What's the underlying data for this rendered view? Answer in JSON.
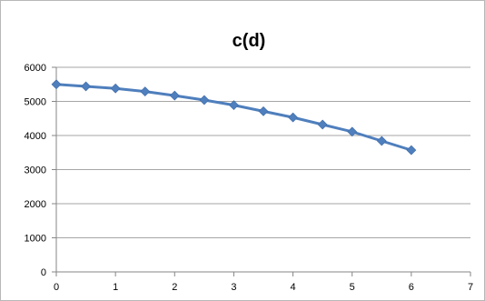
{
  "chart_data": {
    "type": "line",
    "title": "c(d)",
    "xlabel": "",
    "ylabel": "",
    "xlim": [
      0,
      7
    ],
    "ylim": [
      0,
      6000
    ],
    "x_ticks": [
      "0",
      "1",
      "2",
      "3",
      "4",
      "5",
      "6",
      "7"
    ],
    "y_ticks": [
      "0",
      "1000",
      "2000",
      "3000",
      "4000",
      "5000",
      "6000"
    ],
    "grid": true,
    "legend": "none",
    "series": [
      {
        "color": "#4f7fbd",
        "marker": "diamond",
        "points": [
          {
            "x": 0,
            "y": 5500
          },
          {
            "x": 0.5,
            "y": 5440
          },
          {
            "x": 1,
            "y": 5380
          },
          {
            "x": 1.5,
            "y": 5290
          },
          {
            "x": 2,
            "y": 5170
          },
          {
            "x": 2.5,
            "y": 5040
          },
          {
            "x": 3,
            "y": 4890
          },
          {
            "x": 3.5,
            "y": 4710
          },
          {
            "x": 4,
            "y": 4530
          },
          {
            "x": 4.5,
            "y": 4320
          },
          {
            "x": 5,
            "y": 4110
          },
          {
            "x": 5.5,
            "y": 3840
          },
          {
            "x": 6,
            "y": 3570
          }
        ]
      }
    ]
  }
}
